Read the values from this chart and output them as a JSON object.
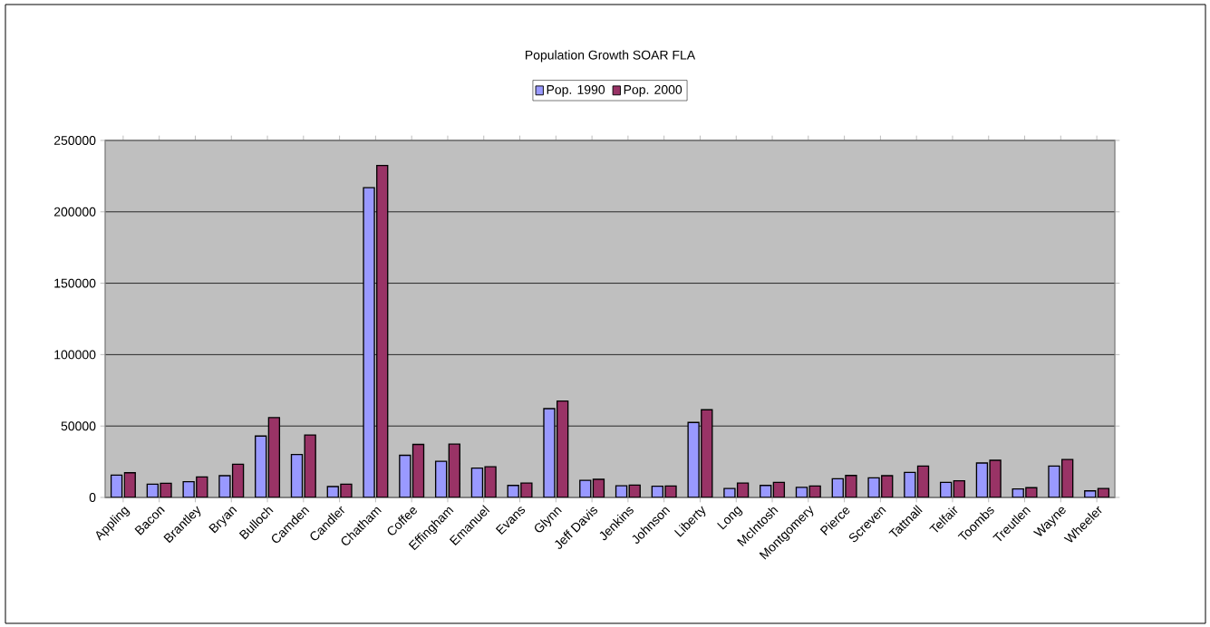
{
  "chart_data": {
    "type": "bar",
    "title": "Population Growth SOAR FLA",
    "categories": [
      "Appling",
      "Bacon",
      "Brantley",
      "Bryan",
      "Bulloch",
      "Camden",
      "Candler",
      "Chatham",
      "Coffee",
      "Effingham",
      "Emanuel",
      "Evans",
      "Glynn",
      "Jeff Davis",
      "Jenkins",
      "Johnson",
      "Liberty",
      "Long",
      "McIntosh",
      "Montgomery",
      "Pierce",
      "Screven",
      "Tattnall",
      "Telfair",
      "Toombs",
      "Treutlen",
      "Wayne",
      "Wheeler"
    ],
    "series": [
      {
        "name": "Pop. 1990",
        "color": "#9999ff",
        "values": [
          15600,
          9300,
          11000,
          15200,
          43000,
          30000,
          7600,
          216900,
          29500,
          25300,
          20500,
          8400,
          62200,
          12000,
          8200,
          7800,
          52500,
          6300,
          8400,
          7000,
          13100,
          13700,
          17500,
          10500,
          24100,
          5900,
          22000,
          4600
        ]
      },
      {
        "name": "Pop. 2000",
        "color": "#993366",
        "values": [
          17300,
          9900,
          14300,
          23200,
          55900,
          43700,
          9300,
          232500,
          37100,
          37300,
          21500,
          10100,
          67500,
          12700,
          8600,
          8000,
          61400,
          10100,
          10500,
          8000,
          15400,
          15200,
          22000,
          11600,
          26000,
          6800,
          26600,
          6300
        ]
      }
    ],
    "ylim": [
      0,
      250000
    ],
    "yticks": [
      0,
      50000,
      100000,
      150000,
      200000,
      250000
    ],
    "grid": "y",
    "legend": "top"
  }
}
